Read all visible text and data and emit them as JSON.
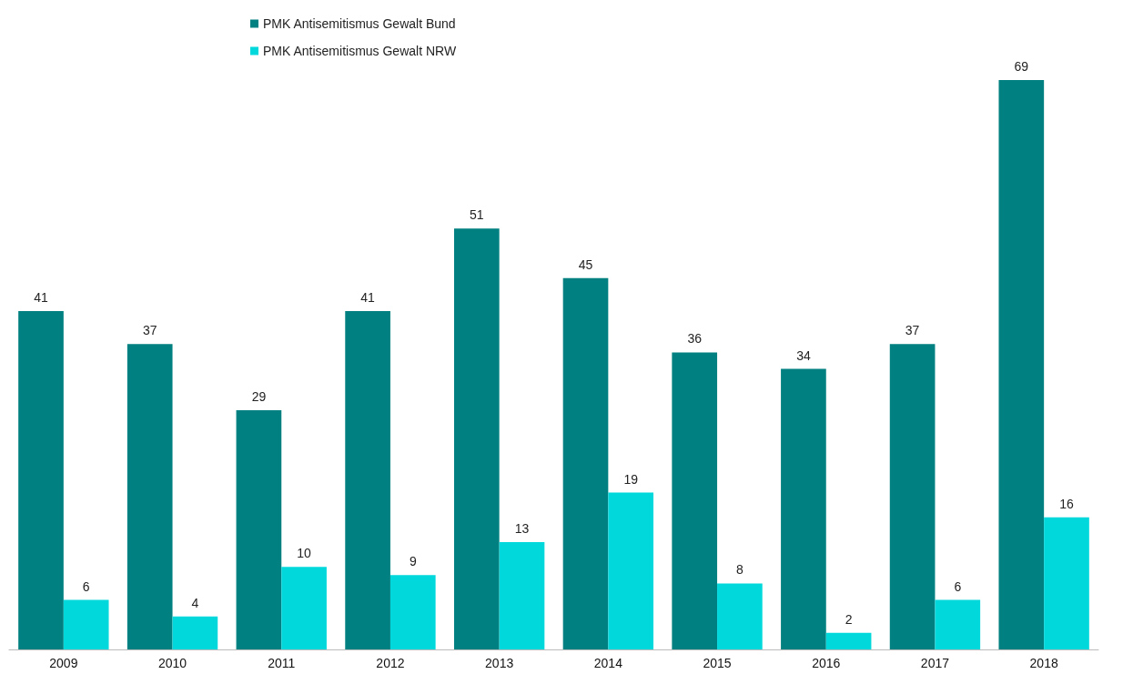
{
  "chart_data": {
    "type": "bar",
    "categories": [
      "2009",
      "2010",
      "2011",
      "2012",
      "2013",
      "2014",
      "2015",
      "2016",
      "2017",
      "2018"
    ],
    "series": [
      {
        "name": "PMK Antisemitismus Gewalt Bund",
        "color": "#008080",
        "values": [
          41,
          37,
          29,
          41,
          51,
          45,
          36,
          34,
          37,
          69
        ]
      },
      {
        "name": "PMK Antisemitismus Gewalt NRW",
        "color": "#00d8dc",
        "values": [
          6,
          4,
          10,
          9,
          13,
          19,
          8,
          2,
          6,
          16
        ]
      }
    ],
    "data_labels": true,
    "legend": "top",
    "grid": false
  }
}
